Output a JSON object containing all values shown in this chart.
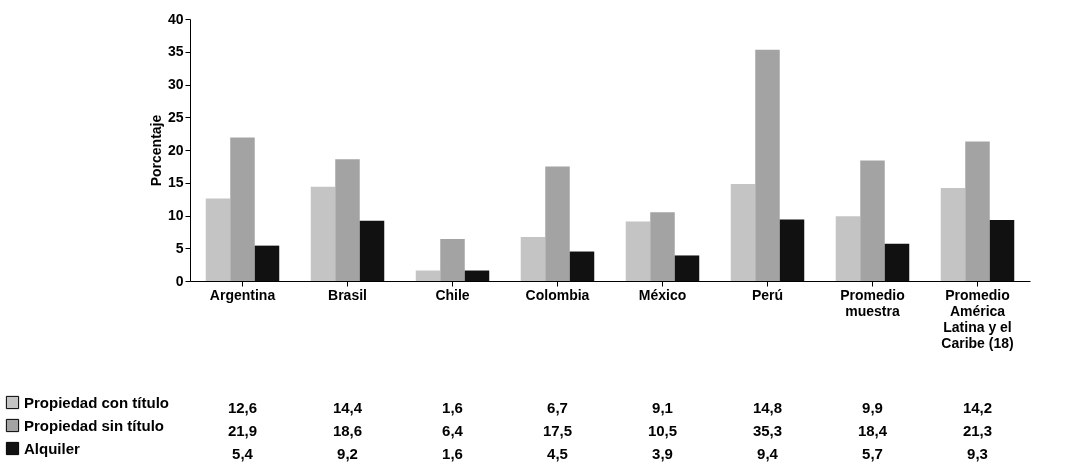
{
  "chart_data": {
    "type": "bar",
    "ylabel": "Porcentaje",
    "categories": [
      "Argentina",
      "Brasil",
      "Chile",
      "Colombia",
      "México",
      "Perú",
      "Promedio muestra",
      "Promedio América Latina y el Caribe (18)"
    ],
    "series": [
      {
        "name": "Propiedad con título",
        "color": "#c4c4c4",
        "values": [
          12.6,
          14.4,
          1.6,
          6.7,
          9.1,
          14.8,
          9.9,
          14.2
        ],
        "value_labels": [
          "12,6",
          "14,4",
          "1,6",
          "6,7",
          "9,1",
          "14,8",
          "9,9",
          "14,2"
        ]
      },
      {
        "name": "Propiedad sin título",
        "color": "#a3a3a3",
        "values": [
          21.9,
          18.6,
          6.4,
          17.5,
          10.5,
          35.3,
          18.4,
          21.3
        ],
        "value_labels": [
          "21,9",
          "18,6",
          "6,4",
          "17,5",
          "10,5",
          "35,3",
          "18,4",
          "21,3"
        ]
      },
      {
        "name": "Alquiler",
        "color": "#111111",
        "values": [
          5.4,
          9.2,
          1.6,
          4.5,
          3.9,
          9.4,
          5.7,
          9.3
        ],
        "value_labels": [
          "5,4",
          "9,2",
          "1,6",
          "4,5",
          "3,9",
          "9,4",
          "5,7",
          "9,3"
        ]
      }
    ],
    "ylim": [
      0,
      40
    ],
    "yticks": [
      0,
      5,
      10,
      15,
      20,
      25,
      30,
      35,
      40
    ],
    "grid": false,
    "legend": "bottom left"
  }
}
